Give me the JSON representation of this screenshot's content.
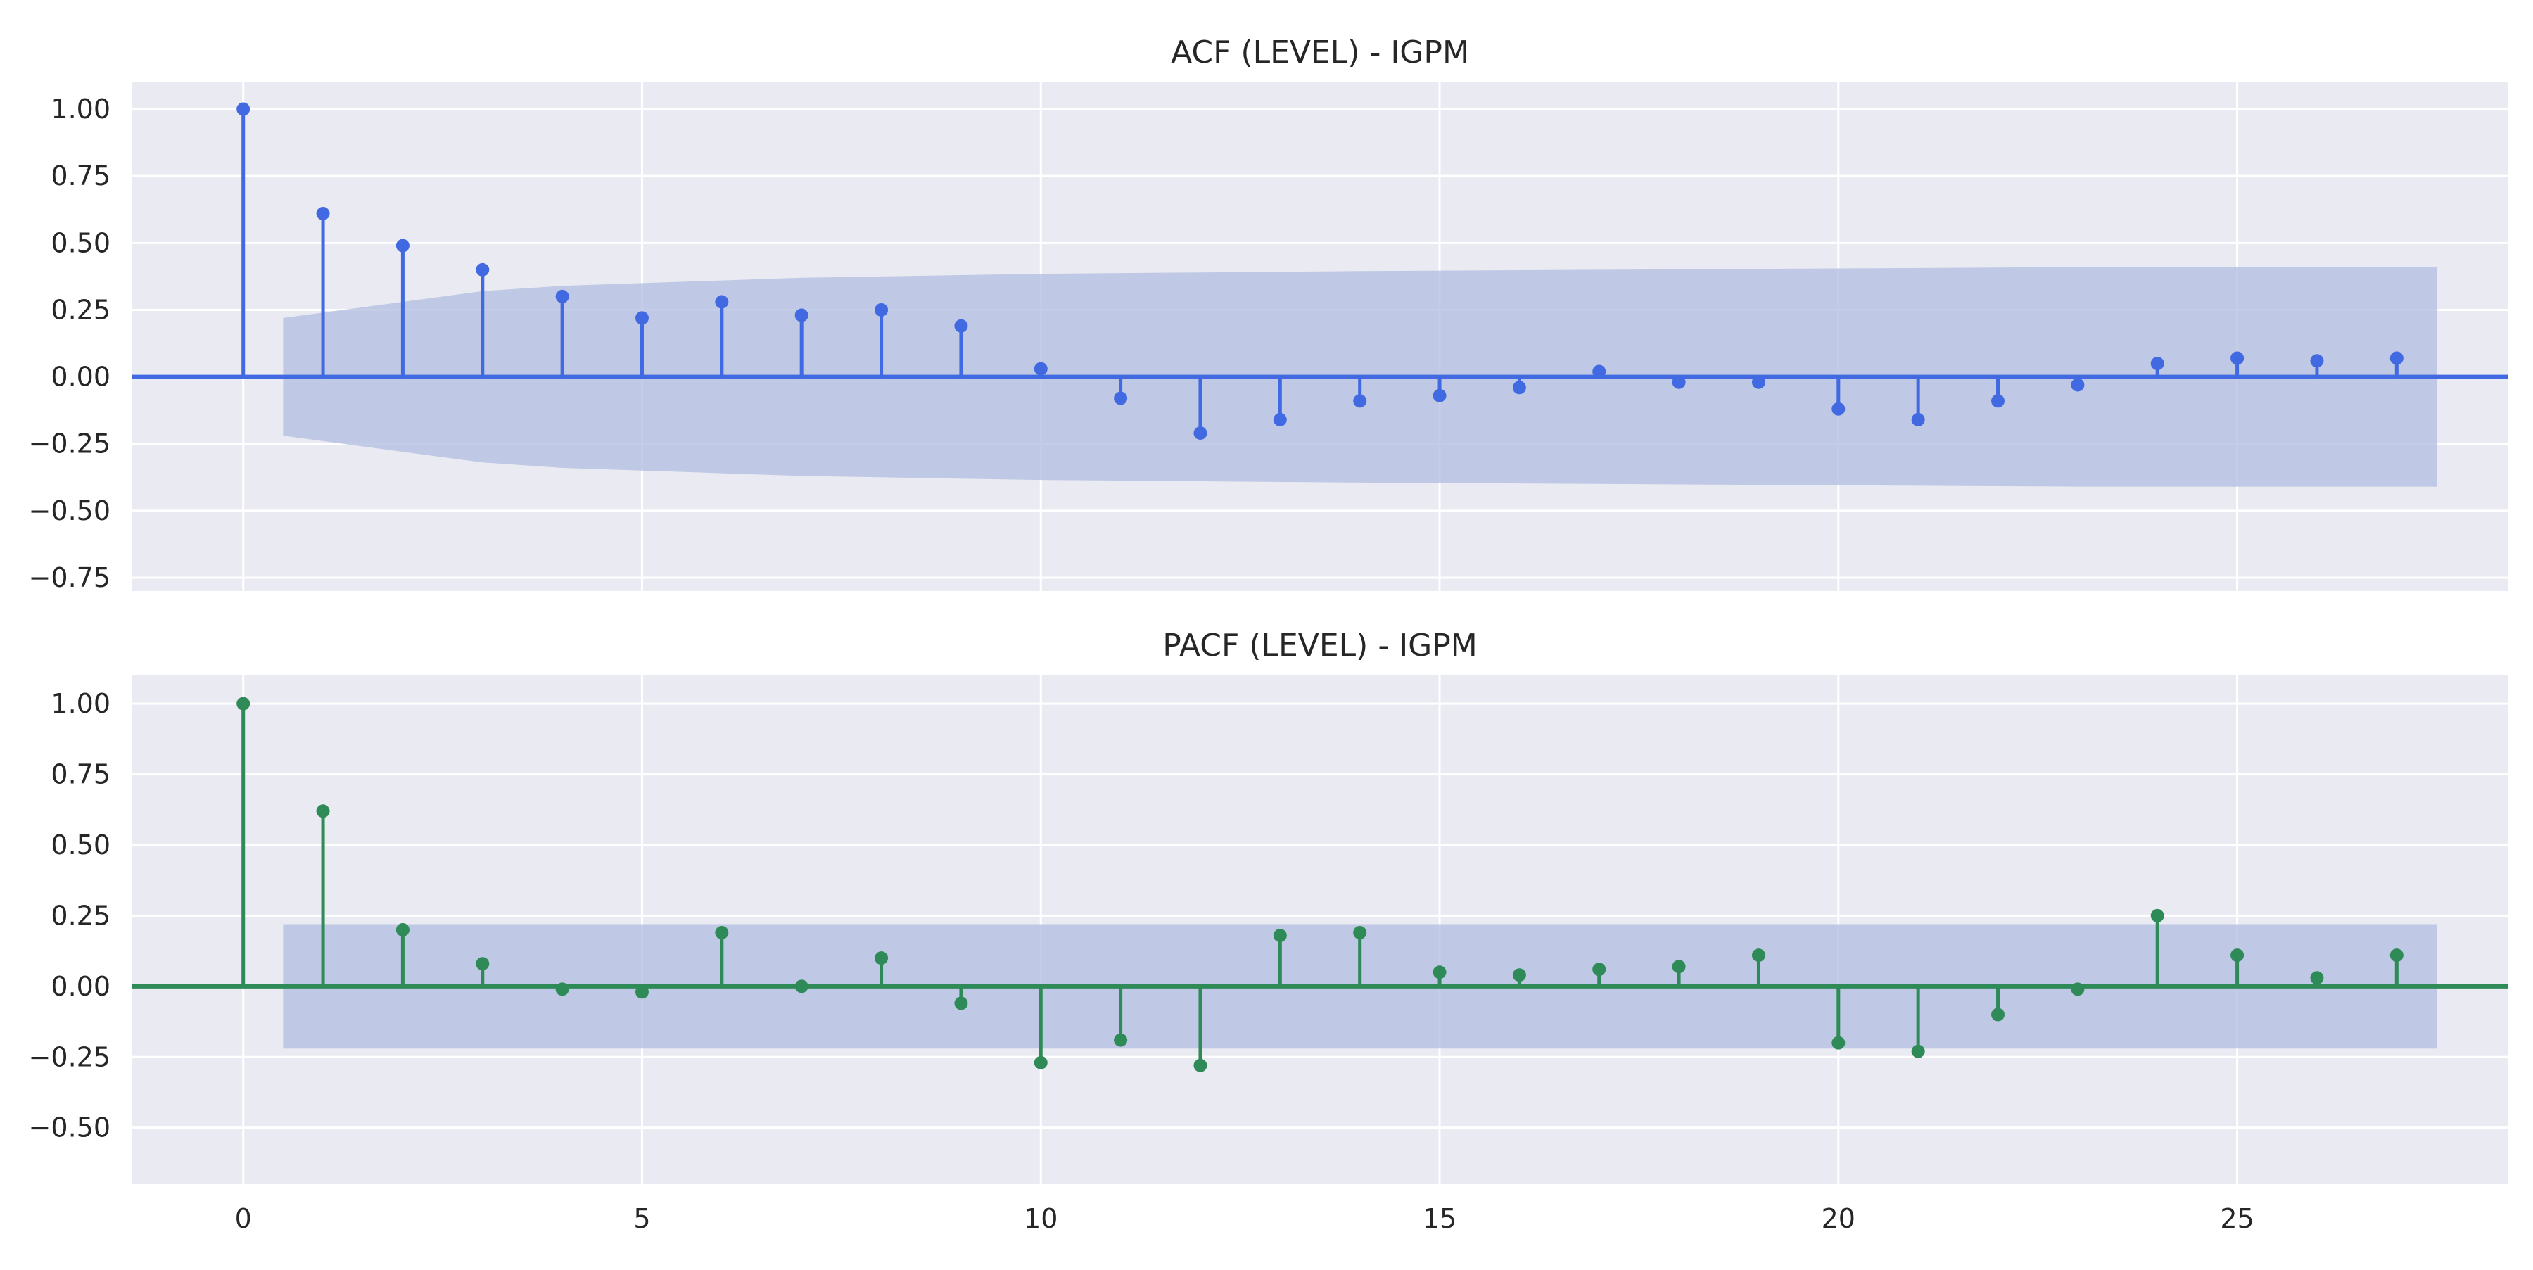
{
  "chart_data": [
    {
      "type": "stem",
      "title": "ACF (LEVEL) - IGPM",
      "xlabel": "",
      "ylabel": "",
      "xlim": [
        -1.4,
        28.4
      ],
      "ylim": [
        -0.8,
        1.1
      ],
      "xticks": [
        0,
        5,
        10,
        15,
        20,
        25
      ],
      "xtick_labels": [
        "0",
        "5",
        "10",
        "15",
        "20",
        "25"
      ],
      "show_xtick_labels": false,
      "yticks": [
        -0.75,
        -0.5,
        -0.25,
        0.0,
        0.25,
        0.5,
        0.75,
        1.0
      ],
      "ytick_labels": [
        "−0.75",
        "−0.50",
        "−0.25",
        "0.00",
        "0.25",
        "0.50",
        "0.75",
        "1.00"
      ],
      "grid": true,
      "color": "#4169e1",
      "lags": [
        0,
        1,
        2,
        3,
        4,
        5,
        6,
        7,
        8,
        9,
        10,
        11,
        12,
        13,
        14,
        15,
        16,
        17,
        18,
        19,
        20,
        21,
        22,
        23,
        24,
        25,
        26,
        27
      ],
      "values": [
        1.0,
        0.61,
        0.49,
        0.4,
        0.3,
        0.22,
        0.28,
        0.23,
        0.25,
        0.19,
        0.03,
        -0.08,
        -0.21,
        -0.16,
        -0.09,
        -0.07,
        -0.04,
        0.02,
        -0.02,
        -0.02,
        -0.12,
        -0.16,
        -0.09,
        -0.03,
        0.05,
        0.07,
        0.06,
        0.07
      ],
      "confint": {
        "x": [
          0.5,
          1,
          2,
          3,
          4,
          5,
          6,
          7,
          8,
          9,
          10,
          12,
          14,
          17,
          20,
          23,
          26,
          27.5
        ],
        "upper": [
          0.22,
          0.24,
          0.28,
          0.32,
          0.34,
          0.35,
          0.36,
          0.37,
          0.375,
          0.38,
          0.385,
          0.39,
          0.395,
          0.4,
          0.405,
          0.41,
          0.41,
          0.41
        ],
        "color": "#b0bcdf"
      }
    },
    {
      "type": "stem",
      "title": "PACF (LEVEL) - IGPM",
      "xlabel": "",
      "ylabel": "",
      "xlim": [
        -1.4,
        28.4
      ],
      "ylim": [
        -0.7,
        1.1
      ],
      "xticks": [
        0,
        5,
        10,
        15,
        20,
        25
      ],
      "xtick_labels": [
        "0",
        "5",
        "10",
        "15",
        "20",
        "25"
      ],
      "show_xtick_labels": true,
      "yticks": [
        -0.5,
        -0.25,
        0.0,
        0.25,
        0.5,
        0.75,
        1.0
      ],
      "ytick_labels": [
        "−0.50",
        "−0.25",
        "0.00",
        "0.25",
        "0.50",
        "0.75",
        "1.00"
      ],
      "grid": true,
      "color": "#2e8b57",
      "lags": [
        0,
        1,
        2,
        3,
        4,
        5,
        6,
        7,
        8,
        9,
        10,
        11,
        12,
        13,
        14,
        15,
        16,
        17,
        18,
        19,
        20,
        21,
        22,
        23,
        24,
        25,
        26,
        27
      ],
      "values": [
        1.0,
        0.62,
        0.2,
        0.08,
        -0.01,
        -0.02,
        0.19,
        0.0,
        0.1,
        -0.06,
        -0.27,
        -0.19,
        -0.28,
        0.18,
        0.19,
        0.05,
        0.04,
        0.06,
        0.07,
        0.11,
        -0.2,
        -0.23,
        -0.1,
        -0.01,
        0.25,
        0.11,
        0.03,
        0.11
      ],
      "confint": {
        "x": [
          0.5,
          27.5
        ],
        "upper": [
          0.22,
          0.22
        ],
        "color": "#b0bcdf"
      }
    }
  ]
}
